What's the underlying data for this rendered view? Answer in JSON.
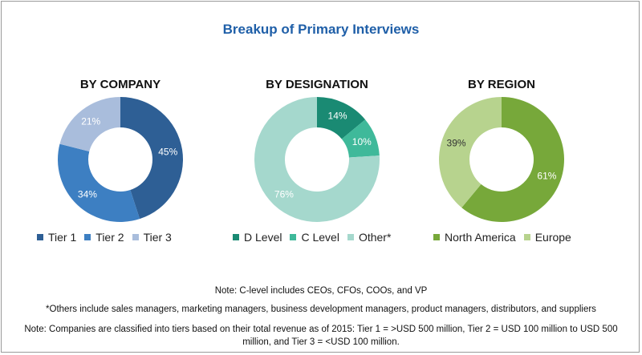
{
  "title": "Breakup of Primary Interviews",
  "chart_data": [
    {
      "type": "pie",
      "variant": "donut",
      "title": "BY COMPANY",
      "slices": [
        {
          "label": "Tier 1",
          "value": 45,
          "color": "#2e5f95",
          "label_text": "45%",
          "label_color": "#ffffff"
        },
        {
          "label": "Tier 2",
          "value": 34,
          "color": "#3d7fc2",
          "label_text": "34%",
          "label_color": "#ffffff"
        },
        {
          "label": "Tier 3",
          "value": 21,
          "color": "#a9bddc",
          "label_text": "21%",
          "label_color": "#ffffff"
        }
      ],
      "legend": [
        "Tier 1",
        "Tier 2",
        "Tier 3"
      ]
    },
    {
      "type": "pie",
      "variant": "donut",
      "title": "BY DESIGNATION",
      "slices": [
        {
          "label": "D Level",
          "value": 14,
          "color": "#1a8a73",
          "label_text": "14%",
          "label_color": "#ffffff"
        },
        {
          "label": "C Level",
          "value": 10,
          "color": "#3fb99a",
          "label_text": "10%",
          "label_color": "#ffffff"
        },
        {
          "label": "Other*",
          "value": 76,
          "color": "#a5d8cd",
          "label_text": "76%",
          "label_color": "#ffffff"
        }
      ],
      "legend": [
        "D Level",
        "C Level",
        "Other*"
      ]
    },
    {
      "type": "pie",
      "variant": "donut",
      "title": "BY REGION",
      "slices": [
        {
          "label": "North America",
          "value": 61,
          "color": "#77a83a",
          "label_text": "61%",
          "label_color": "#ffffff"
        },
        {
          "label": "Europe",
          "value": 39,
          "color": "#b7d38e",
          "label_text": "39%",
          "label_color": "#333333"
        }
      ],
      "legend": [
        "North America",
        "Europe"
      ]
    }
  ],
  "notes": {
    "c_level": "Note: C-level includes CEOs, CFOs, COOs, and VP",
    "others": "*Others include sales managers, marketing managers, business development managers, product managers, distributors, and suppliers",
    "tiers": "Note: Companies are classified into tiers based on their total revenue as of 2015: Tier 1 = >USD 500 million, Tier 2 = USD 100 million to USD 500 million, and Tier 3 = <USD 100 million."
  }
}
